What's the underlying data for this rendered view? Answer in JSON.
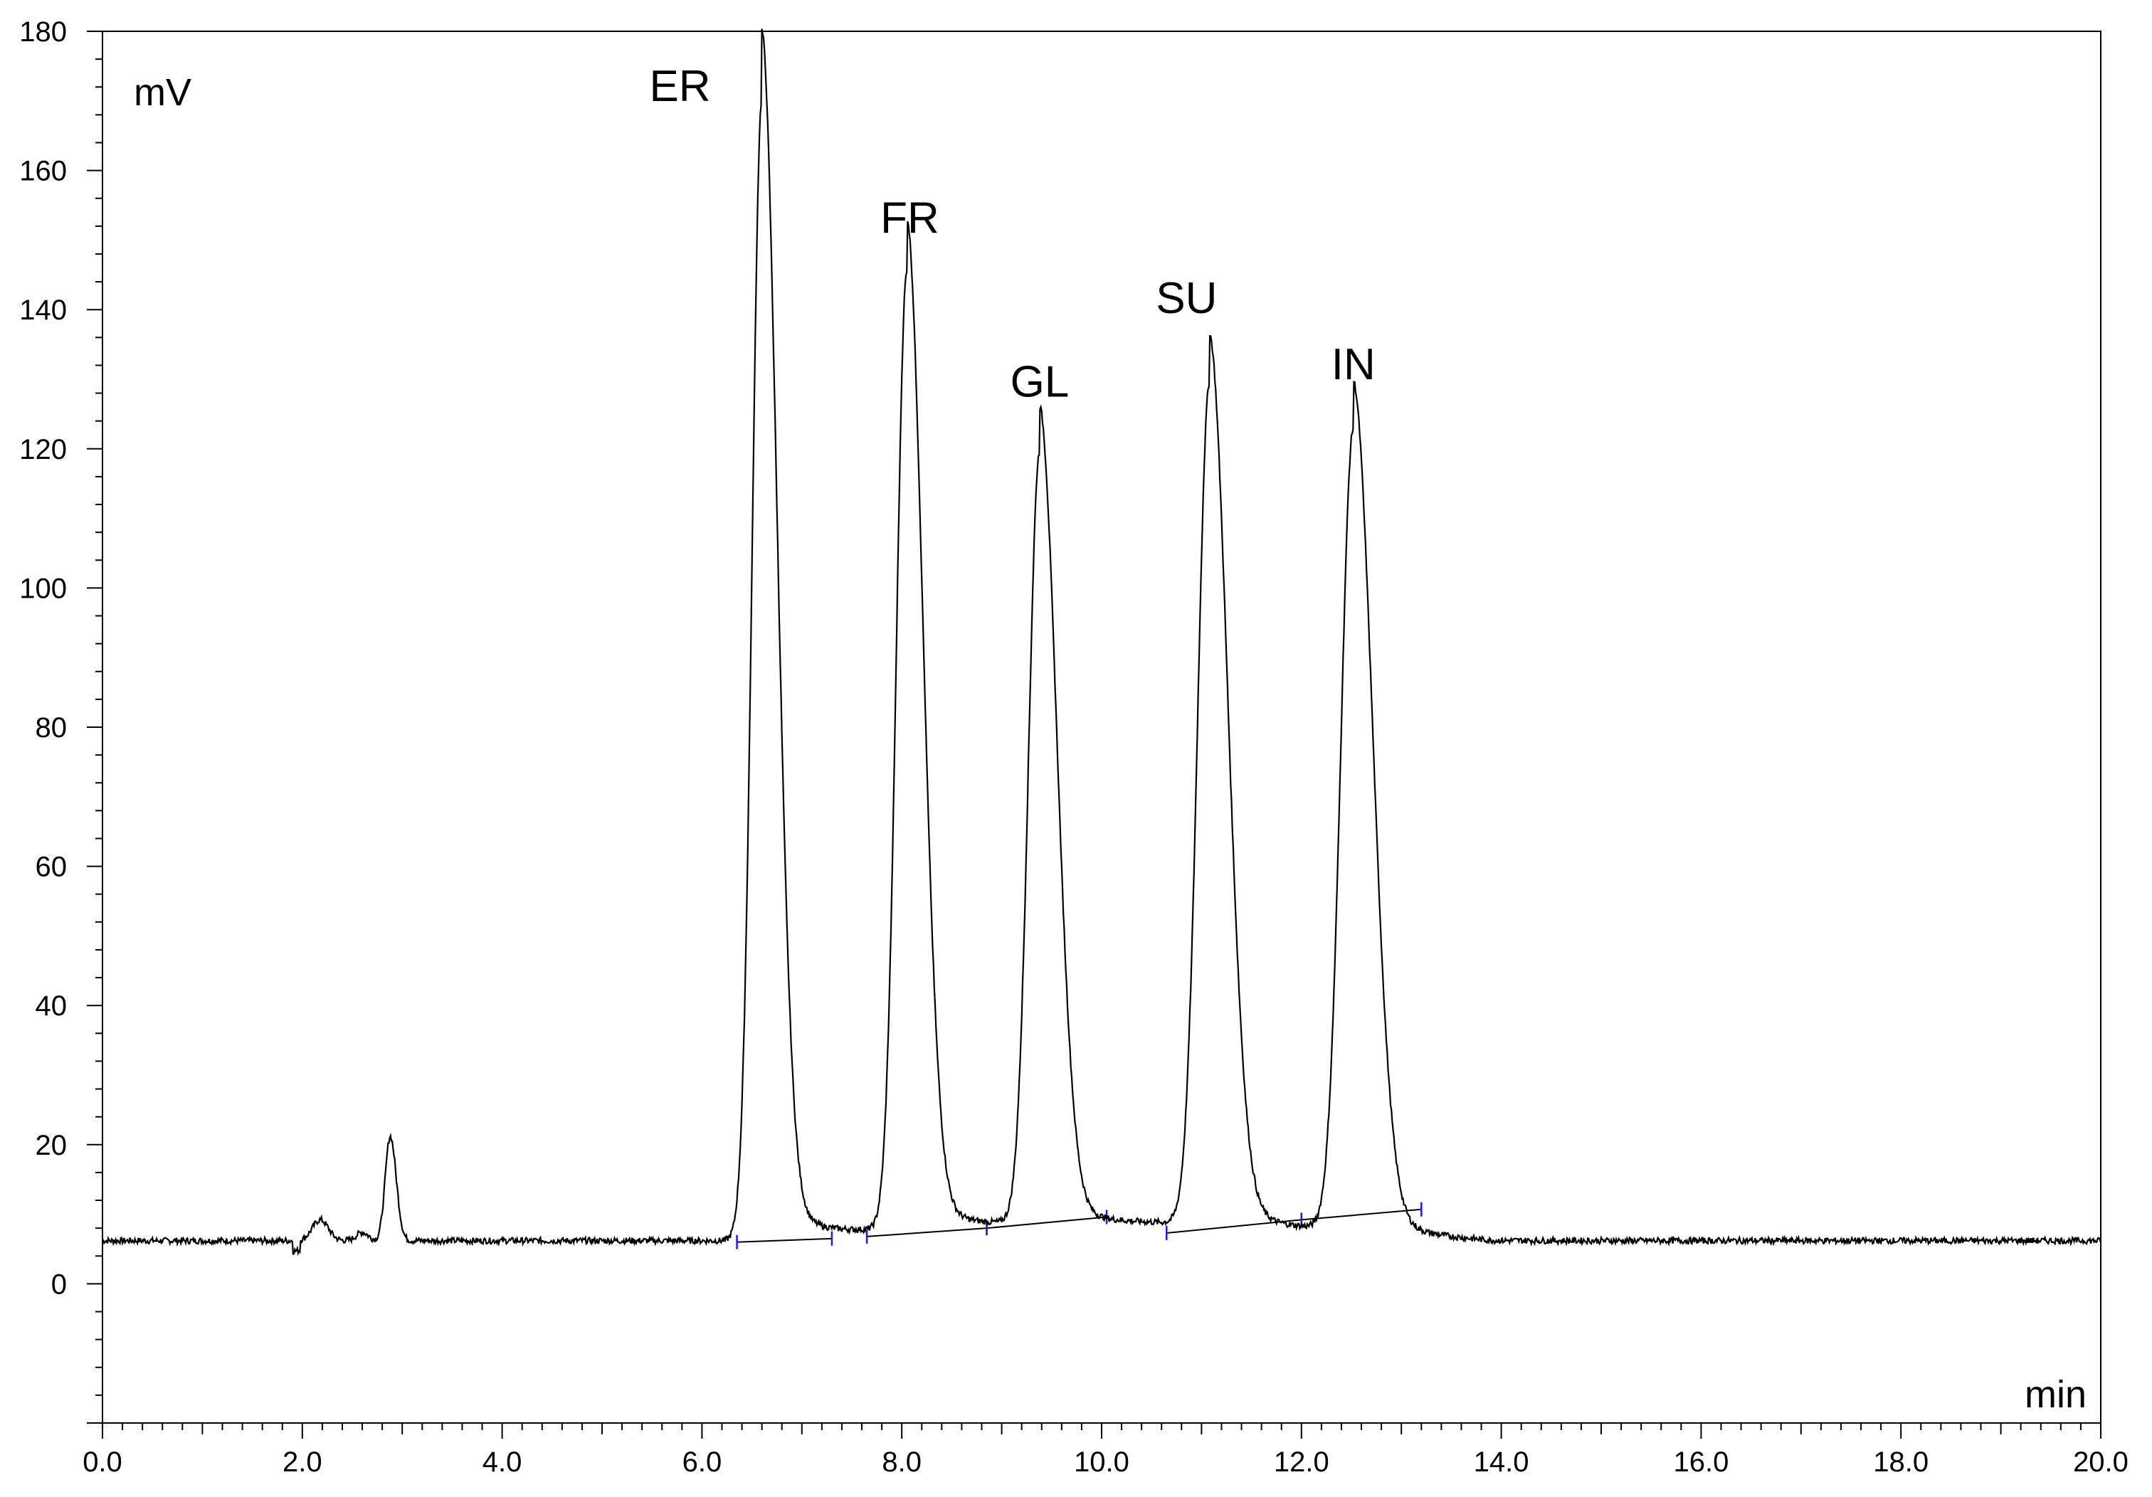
{
  "chart_data": {
    "type": "line",
    "title": "",
    "xlabel": "min",
    "ylabel": "mV",
    "xlim": [
      0,
      20
    ],
    "ylim": [
      -20,
      180
    ],
    "grid": false,
    "x_ticks": [
      {
        "value": 0,
        "label": "0.0"
      },
      {
        "value": 2,
        "label": "2.0"
      },
      {
        "value": 4,
        "label": "4.0"
      },
      {
        "value": 6,
        "label": "6.0"
      },
      {
        "value": 8,
        "label": "8.0"
      },
      {
        "value": 10,
        "label": "10.0"
      },
      {
        "value": 12,
        "label": "12.0"
      },
      {
        "value": 14,
        "label": "14.0"
      },
      {
        "value": 16,
        "label": "16.0"
      },
      {
        "value": 18,
        "label": "18.0"
      },
      {
        "value": 20,
        "label": "20.0"
      }
    ],
    "y_ticks": [
      {
        "value": 0,
        "label": "0"
      },
      {
        "value": 20,
        "label": "20"
      },
      {
        "value": 40,
        "label": "40"
      },
      {
        "value": 60,
        "label": "60"
      },
      {
        "value": 80,
        "label": "80"
      },
      {
        "value": 100,
        "label": "100"
      },
      {
        "value": 120,
        "label": "120"
      },
      {
        "value": 140,
        "label": "140"
      },
      {
        "value": 160,
        "label": "160"
      },
      {
        "value": 180,
        "label": "180"
      }
    ],
    "baseline": 6.2,
    "peaks": [
      {
        "label": "",
        "rt": 2.88,
        "height": 21.2
      },
      {
        "label": "ER",
        "rt": 6.6,
        "height": 170.0,
        "label_x": 5.78,
        "label_y": 170.0
      },
      {
        "label": "FR",
        "rt": 8.05,
        "height": 143.5,
        "label_x": 8.08,
        "label_y": 151.0
      },
      {
        "label": "GL",
        "rt": 9.38,
        "height": 117.0,
        "label_x": 9.38,
        "label_y": 127.5
      },
      {
        "label": "SU",
        "rt": 11.08,
        "height": 127.0,
        "label_x": 10.85,
        "label_y": 139.5
      },
      {
        "label": "IN",
        "rt": 12.52,
        "height": 121.5,
        "label_x": 12.52,
        "label_y": 130.0
      }
    ],
    "integration_baselines": [
      {
        "x1": 6.35,
        "y1": 6.0,
        "x2": 7.3,
        "y2": 6.5
      },
      {
        "x1": 7.65,
        "y1": 6.8,
        "x2": 8.85,
        "y2": 8.0
      },
      {
        "x1": 8.85,
        "y1": 8.0,
        "x2": 10.05,
        "y2": 9.6
      },
      {
        "x1": 10.65,
        "y1": 7.3,
        "x2": 12.0,
        "y2": 9.2
      },
      {
        "x1": 12.0,
        "y1": 9.2,
        "x2": 13.2,
        "y2": 10.7
      }
    ],
    "colors": {
      "trace": "#000000",
      "axis": "#000000",
      "marker": "#1a1aff"
    }
  }
}
